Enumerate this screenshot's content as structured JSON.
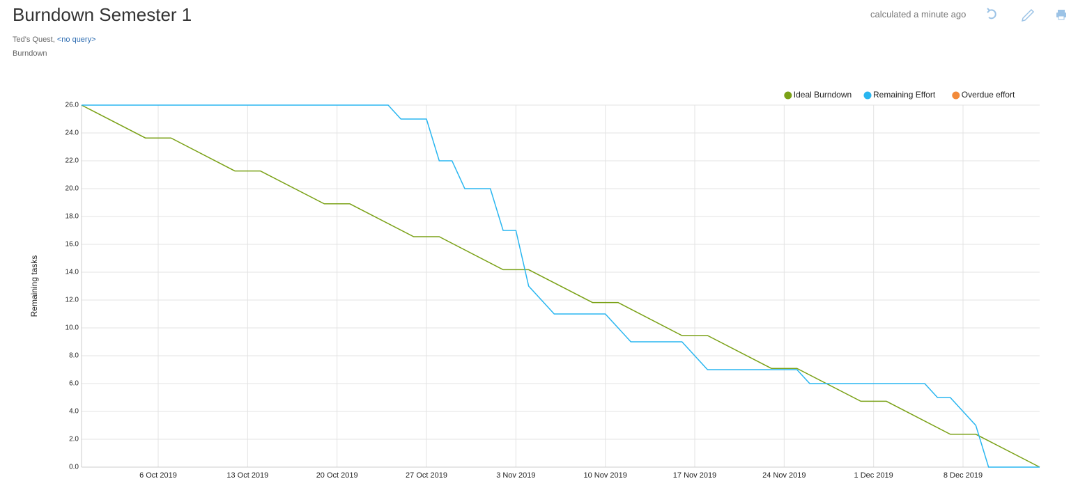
{
  "header": {
    "title": "Burndown Semester 1",
    "status": "calculated a minute ago",
    "project": "Ted's Quest,",
    "query": "<no query>",
    "kind": "Burndown"
  },
  "chart_data": {
    "type": "line",
    "y_label": "Remaining tasks",
    "xlim": [
      "2019-09-30",
      "2019-12-14"
    ],
    "xticks": [
      {
        "value": "2019-10-06",
        "label": "6 Oct 2019"
      },
      {
        "value": "2019-10-13",
        "label": "13 Oct 2019"
      },
      {
        "value": "2019-10-20",
        "label": "20 Oct 2019"
      },
      {
        "value": "2019-10-27",
        "label": "27 Oct 2019"
      },
      {
        "value": "2019-11-03",
        "label": "3 Nov 2019"
      },
      {
        "value": "2019-11-10",
        "label": "10 Nov 2019"
      },
      {
        "value": "2019-11-17",
        "label": "17 Nov 2019"
      },
      {
        "value": "2019-11-24",
        "label": "24 Nov 2019"
      },
      {
        "value": "2019-12-01",
        "label": "1 Dec 2019"
      },
      {
        "value": "2019-12-08",
        "label": "8 Dec 2019"
      }
    ],
    "ylim": [
      0,
      26
    ],
    "yticks": [
      {
        "value": 0,
        "label": "0.0"
      },
      {
        "value": 2,
        "label": "2.0"
      },
      {
        "value": 4,
        "label": "4.0"
      },
      {
        "value": 6,
        "label": "6.0"
      },
      {
        "value": 8,
        "label": "8.0"
      },
      {
        "value": 10,
        "label": "10.0"
      },
      {
        "value": 12,
        "label": "12.0"
      },
      {
        "value": 14,
        "label": "14.0"
      },
      {
        "value": 16,
        "label": "16.0"
      },
      {
        "value": 18,
        "label": "18.0"
      },
      {
        "value": 20,
        "label": "20.0"
      },
      {
        "value": 22,
        "label": "22.0"
      },
      {
        "value": 24,
        "label": "24.0"
      },
      {
        "value": 26,
        "label": "26.0"
      }
    ],
    "grid": true,
    "legend": "top-right",
    "series": [
      {
        "name": "Ideal Burndown",
        "color": "#7aa116",
        "x": [
          "2019-09-30",
          "2019-10-05",
          "2019-10-07",
          "2019-10-12",
          "2019-10-14",
          "2019-10-19",
          "2019-10-21",
          "2019-10-26",
          "2019-10-28",
          "2019-11-02",
          "2019-11-04",
          "2019-11-09",
          "2019-11-11",
          "2019-11-16",
          "2019-11-18",
          "2019-11-23",
          "2019-11-25",
          "2019-11-30",
          "2019-12-02",
          "2019-12-07",
          "2019-12-09",
          "2019-12-14"
        ],
        "values": [
          26,
          23.64,
          23.64,
          21.27,
          21.27,
          18.91,
          18.91,
          16.55,
          16.55,
          14.18,
          14.18,
          11.82,
          11.82,
          9.45,
          9.45,
          7.09,
          7.09,
          4.73,
          4.73,
          2.36,
          2.36,
          0
        ]
      },
      {
        "name": "Remaining Effort",
        "color": "#29b6f0",
        "x": [
          "2019-09-30",
          "2019-10-24",
          "2019-10-25",
          "2019-10-27",
          "2019-10-28",
          "2019-10-29",
          "2019-10-30",
          "2019-11-01",
          "2019-11-02",
          "2019-11-03",
          "2019-11-04",
          "2019-11-06",
          "2019-11-10",
          "2019-11-12",
          "2019-11-16",
          "2019-11-18",
          "2019-11-25",
          "2019-11-26",
          "2019-12-05",
          "2019-12-06",
          "2019-12-07",
          "2019-12-09",
          "2019-12-10",
          "2019-12-14"
        ],
        "values": [
          26,
          26,
          25,
          25,
          22,
          22,
          20,
          20,
          17,
          17,
          13,
          11,
          11,
          9,
          9,
          7,
          7,
          6,
          6,
          5,
          5,
          3,
          0,
          0
        ]
      },
      {
        "name": "Overdue effort",
        "color": "#f28a3a",
        "x": [],
        "values": []
      }
    ]
  }
}
